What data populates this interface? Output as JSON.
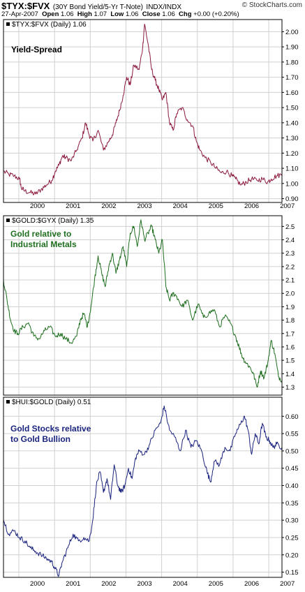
{
  "header": {
    "symbol": "$TYX:$FVX",
    "description": "(30Y Bond Yield/5-Yr T-Note)",
    "exchange": "INDX/INDX",
    "date": "27-Apr-2007",
    "open_label": "Open",
    "open": "1.06",
    "high_label": "High",
    "high": "1.07",
    "low_label": "Low",
    "low": "1.06",
    "close_label": "Close",
    "close": "1.06",
    "chg_label": "Chg",
    "chg": "+0.00 (+0.20%)",
    "brand": "© StockCharts.com"
  },
  "annotations": {
    "panel1": "Yield-Spread",
    "panel2_line1": "Gold relative to",
    "panel2_line2": "Industrial Metals",
    "panel3_line1": "Gold Stocks relative",
    "panel3_line2": "to Gold Bullion"
  },
  "colors": {
    "panel1": "#8b1a3c",
    "panel2": "#1e6e1e",
    "panel3": "#1a237e",
    "grid": "#d0d0d0",
    "frame": "#000000"
  },
  "chart_data": [
    {
      "type": "line",
      "legend": "$TYX:$FVX (Daily) 1.06",
      "ylim": [
        0.875,
        2.08
      ],
      "yticks": [
        0.9,
        1.0,
        1.1,
        1.2,
        1.3,
        1.4,
        1.5,
        1.6,
        1.7,
        1.8,
        1.9,
        2.0
      ],
      "ytick_labels": [
        "0.90",
        "1.00",
        "1.10",
        "1.20",
        "1.30",
        "1.40",
        "1.50",
        "1.60",
        "1.70",
        "1.80",
        "1.90",
        "2.00"
      ],
      "xlim": [
        1999.55,
        2007.35
      ],
      "xticks": [
        2000,
        2001,
        2002,
        2003,
        2004,
        2005,
        2006,
        2007
      ],
      "xtick_labels": [
        "2000",
        "2001",
        "2002",
        "2003",
        "2004",
        "2005",
        "2006",
        "2007"
      ],
      "series": [
        {
          "x": [
            1999.55,
            1999.7,
            1999.85,
            2000.0,
            2000.05,
            2000.15,
            2000.3,
            2000.45,
            2000.6,
            2000.75,
            2000.9,
            2001.0,
            2001.1,
            2001.2,
            2001.3,
            2001.45,
            2001.6,
            2001.75,
            2001.85,
            2001.95,
            2002.05,
            2002.2,
            2002.35,
            2002.5,
            2002.6,
            2002.7,
            2002.8,
            2002.9,
            2003.0,
            2003.1,
            2003.2,
            2003.35,
            2003.45,
            2003.5,
            2003.6,
            2003.7,
            2003.8,
            2003.9,
            2004.0,
            2004.1,
            2004.2,
            2004.3,
            2004.4,
            2004.55,
            2004.7,
            2004.85,
            2004.95,
            2005.05,
            2005.2,
            2005.35,
            2005.5,
            2005.65,
            2005.8,
            2005.95,
            2006.05,
            2006.2,
            2006.35,
            2006.5,
            2006.65,
            2006.8,
            2006.95,
            2007.05,
            2007.2,
            2007.35
          ],
          "y": [
            1.08,
            1.06,
            1.05,
            1.03,
            0.97,
            0.95,
            0.94,
            0.93,
            0.96,
            0.99,
            1.02,
            1.08,
            1.12,
            1.18,
            1.17,
            1.15,
            1.22,
            1.3,
            1.4,
            1.32,
            1.28,
            1.35,
            1.22,
            1.28,
            1.32,
            1.4,
            1.48,
            1.58,
            1.7,
            1.65,
            1.78,
            1.75,
            1.9,
            2.05,
            1.92,
            1.75,
            1.68,
            1.62,
            1.55,
            1.6,
            1.4,
            1.35,
            1.46,
            1.5,
            1.42,
            1.38,
            1.28,
            1.22,
            1.17,
            1.14,
            1.1,
            1.07,
            1.08,
            1.05,
            1.03,
            0.99,
            1.01,
            1.03,
            1.02,
            1.03,
            1.01,
            1.03,
            1.05,
            1.06
          ]
        }
      ]
    },
    {
      "type": "line",
      "legend": "$GOLD:$GYX (Daily) 1.35",
      "ylim": [
        1.24,
        2.58
      ],
      "yticks": [
        1.3,
        1.4,
        1.5,
        1.6,
        1.7,
        1.8,
        1.9,
        2.0,
        2.1,
        2.2,
        2.3,
        2.4,
        2.5
      ],
      "ytick_labels": [
        "1.3",
        "1.4",
        "1.5",
        "1.6",
        "1.7",
        "1.8",
        "1.9",
        "2.0",
        "2.1",
        "2.2",
        "2.3",
        "2.4",
        "2.5"
      ],
      "xlim": [
        1999.55,
        2007.35
      ],
      "series": [
        {
          "x": [
            1999.55,
            1999.65,
            1999.75,
            1999.85,
            1999.95,
            2000.1,
            2000.25,
            2000.4,
            2000.55,
            2000.7,
            2000.85,
            2001.0,
            2001.15,
            2001.3,
            2001.45,
            2001.6,
            2001.7,
            2001.8,
            2001.9,
            2002.0,
            2002.1,
            2002.2,
            2002.3,
            2002.4,
            2002.5,
            2002.6,
            2002.7,
            2002.8,
            2002.9,
            2003.0,
            2003.1,
            2003.2,
            2003.3,
            2003.4,
            2003.5,
            2003.6,
            2003.7,
            2003.8,
            2003.9,
            2004.0,
            2004.1,
            2004.2,
            2004.3,
            2004.4,
            2004.55,
            2004.7,
            2004.85,
            2005.0,
            2005.15,
            2005.3,
            2005.45,
            2005.6,
            2005.75,
            2005.9,
            2006.05,
            2006.15,
            2006.25,
            2006.35,
            2006.45,
            2006.55,
            2006.65,
            2006.75,
            2006.85,
            2006.95,
            2007.05,
            2007.15,
            2007.25,
            2007.35
          ],
          "y": [
            2.1,
            1.95,
            1.8,
            1.72,
            1.7,
            1.75,
            1.78,
            1.68,
            1.66,
            1.72,
            1.75,
            1.68,
            1.7,
            1.66,
            1.63,
            1.68,
            1.8,
            1.85,
            1.75,
            1.9,
            2.1,
            2.28,
            2.15,
            2.05,
            2.2,
            2.3,
            2.15,
            2.25,
            2.35,
            2.2,
            2.45,
            2.5,
            2.35,
            2.55,
            2.4,
            2.45,
            2.5,
            2.4,
            2.3,
            2.4,
            2.05,
            1.95,
            2.0,
            1.98,
            1.9,
            1.95,
            1.8,
            1.92,
            1.82,
            1.85,
            1.88,
            1.75,
            1.83,
            1.78,
            1.68,
            1.6,
            1.52,
            1.48,
            1.45,
            1.4,
            1.3,
            1.42,
            1.37,
            1.48,
            1.65,
            1.55,
            1.38,
            1.35
          ]
        }
      ]
    },
    {
      "type": "line",
      "legend": "$HUI:$GOLD (Daily) 0.51",
      "ylim": [
        0.135,
        0.655
      ],
      "yticks": [
        0.15,
        0.2,
        0.25,
        0.3,
        0.35,
        0.4,
        0.45,
        0.5,
        0.55,
        0.6
      ],
      "ytick_labels": [
        "0.15",
        "0.20",
        "0.25",
        "0.30",
        "0.35",
        "0.40",
        "0.45",
        "0.50",
        "0.55",
        "0.60"
      ],
      "xlim": [
        1999.55,
        2007.35
      ],
      "xticks": [
        2000,
        2001,
        2002,
        2003,
        2004,
        2005,
        2006,
        2007
      ],
      "xtick_labels": [
        "2000",
        "2001",
        "2002",
        "2003",
        "2004",
        "2005",
        "2006",
        "2007"
      ],
      "series": [
        {
          "x": [
            1999.55,
            1999.7,
            1999.85,
            2000.0,
            2000.15,
            2000.3,
            2000.45,
            2000.6,
            2000.75,
            2000.9,
            2001.0,
            2001.1,
            2001.2,
            2001.35,
            2001.5,
            2001.65,
            2001.8,
            2001.95,
            2002.05,
            2002.15,
            2002.25,
            2002.35,
            2002.45,
            2002.55,
            2002.65,
            2002.75,
            2002.85,
            2002.95,
            2003.05,
            2003.15,
            2003.25,
            2003.35,
            2003.5,
            2003.65,
            2003.8,
            2003.95,
            2004.05,
            2004.2,
            2004.35,
            2004.5,
            2004.65,
            2004.8,
            2004.95,
            2005.1,
            2005.25,
            2005.35,
            2005.45,
            2005.6,
            2005.75,
            2005.9,
            2006.05,
            2006.2,
            2006.3,
            2006.4,
            2006.5,
            2006.6,
            2006.7,
            2006.8,
            2006.9,
            2007.0,
            2007.1,
            2007.2,
            2007.35
          ],
          "y": [
            0.3,
            0.26,
            0.27,
            0.25,
            0.24,
            0.22,
            0.21,
            0.2,
            0.19,
            0.18,
            0.16,
            0.14,
            0.18,
            0.22,
            0.26,
            0.24,
            0.25,
            0.24,
            0.3,
            0.4,
            0.44,
            0.38,
            0.42,
            0.36,
            0.46,
            0.4,
            0.38,
            0.4,
            0.45,
            0.42,
            0.48,
            0.5,
            0.49,
            0.52,
            0.56,
            0.58,
            0.63,
            0.56,
            0.54,
            0.5,
            0.56,
            0.51,
            0.53,
            0.5,
            0.44,
            0.41,
            0.47,
            0.46,
            0.51,
            0.5,
            0.55,
            0.58,
            0.6,
            0.56,
            0.49,
            0.55,
            0.52,
            0.58,
            0.54,
            0.53,
            0.51,
            0.52,
            0.51
          ]
        }
      ]
    }
  ]
}
